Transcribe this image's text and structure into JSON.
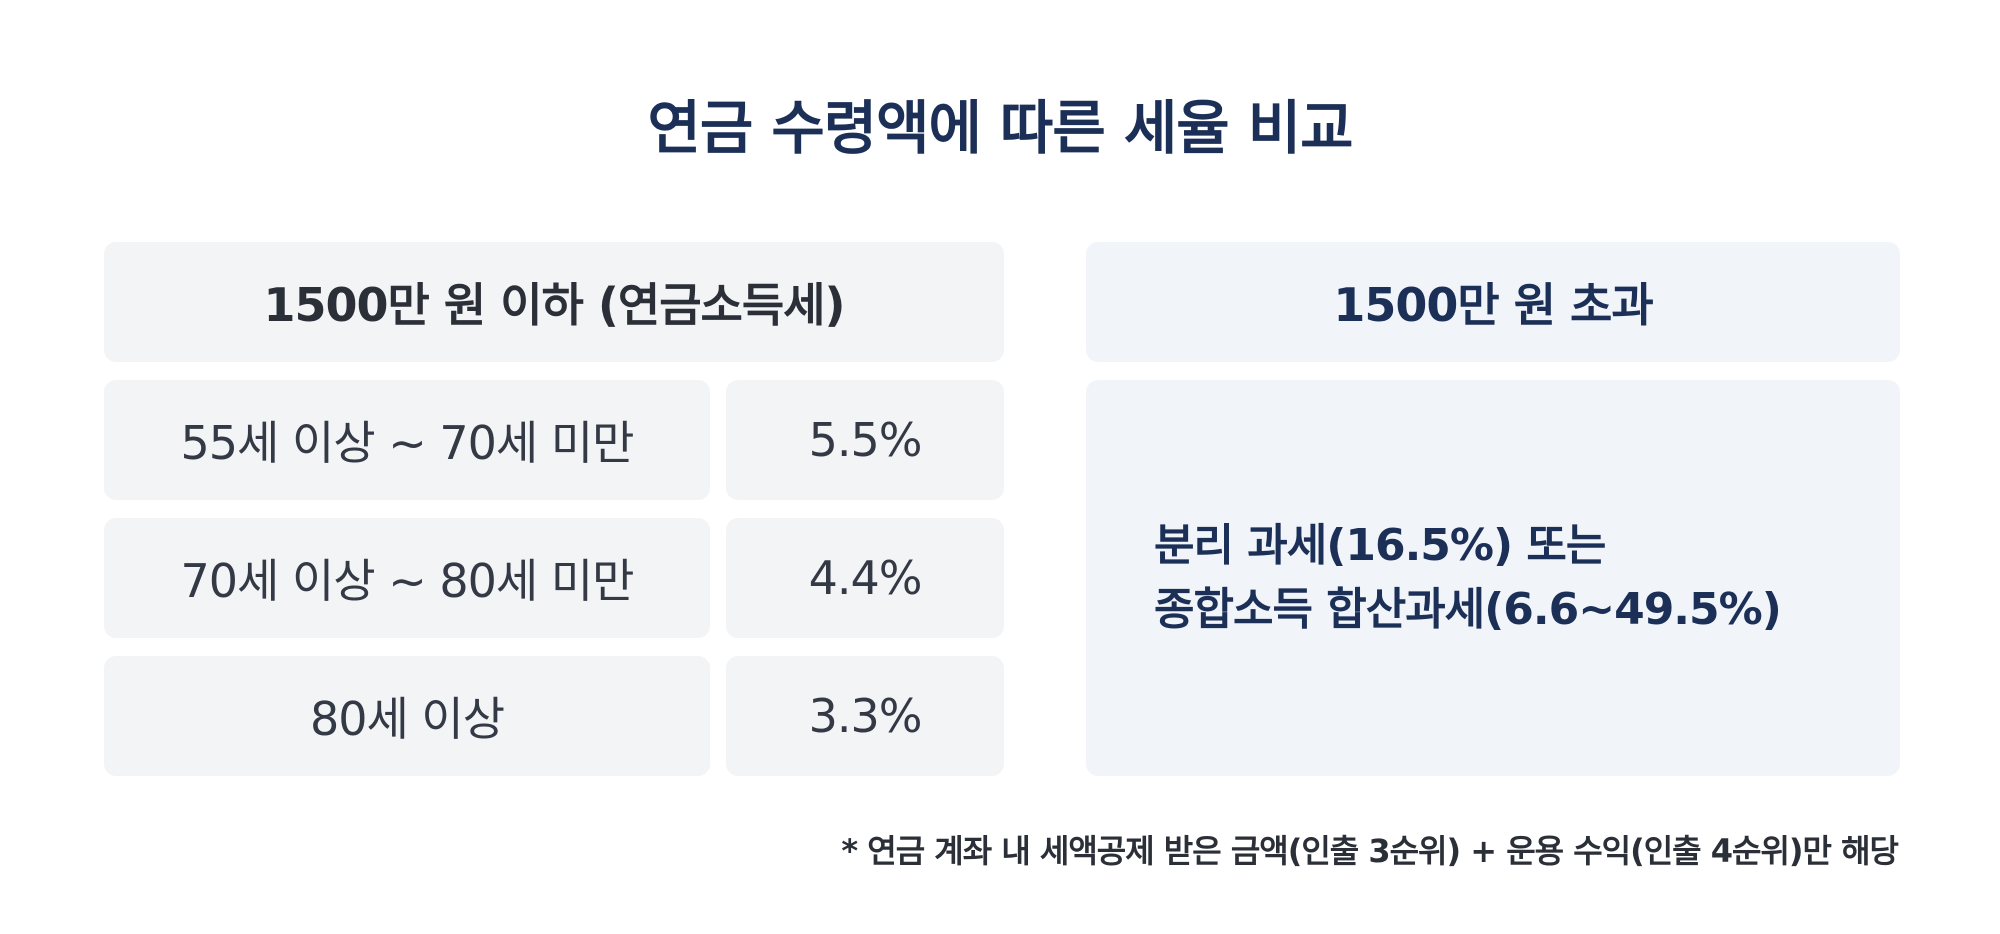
{
  "title": "연금 수령액에 따른 세율 비교",
  "left_table": {
    "header": "1500만 원 이하 (연금소득세)",
    "rows": [
      {
        "age": "55세 이상 ~ 70세 미만",
        "rate": "5.5%"
      },
      {
        "age": "70세 이상 ~ 80세 미만",
        "rate": "4.4%"
      },
      {
        "age": "80세 이상",
        "rate": "3.3%"
      }
    ]
  },
  "right_table": {
    "header": "1500만 원 초과",
    "body_line1": "분리 과세(16.5%) 또는",
    "body_line2": "종합소득 합산과세(6.6~49.5%)"
  },
  "footnote": "* 연금 계좌 내 세액공제 받은 금액(인출 3순위) + 운용 수익(인출 4순위)만 해당",
  "colors": {
    "title": "#1b2f57",
    "cell_bg": "#f3f4f6",
    "right_bg": "#f1f5f9",
    "text_dark": "#2b2f37"
  }
}
